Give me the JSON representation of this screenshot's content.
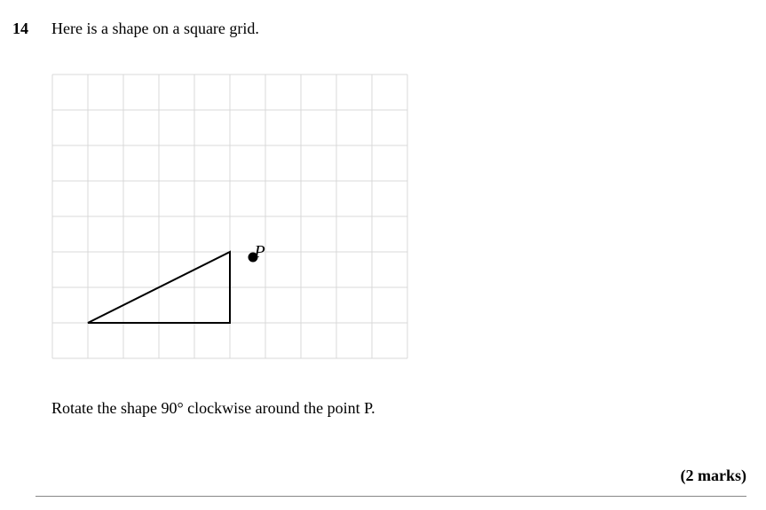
{
  "question": {
    "number": "14",
    "prompt": "Here is a shape on a square grid.",
    "instruction": "Rotate the shape 90° clockwise around the point P.",
    "marks": "(2 marks)"
  },
  "grid": {
    "cols": 10,
    "rows": 8,
    "cell": 40,
    "line_color": "#d8d8d8",
    "line_width": 1,
    "background": "#ffffff",
    "shape": {
      "type": "triangle",
      "vertices_grid": [
        [
          1,
          7
        ],
        [
          5,
          5
        ],
        [
          5,
          7
        ]
      ],
      "stroke": "#000000",
      "stroke_width": 2,
      "fill": "none"
    },
    "point": {
      "label": "P",
      "grid_pos": [
        6,
        5
      ],
      "dot_radius": 5.5,
      "dot_offset": [
        -14,
        6
      ],
      "color": "#000000",
      "label_fontsize": 20,
      "label_offset": [
        -4,
        0
      ]
    }
  }
}
